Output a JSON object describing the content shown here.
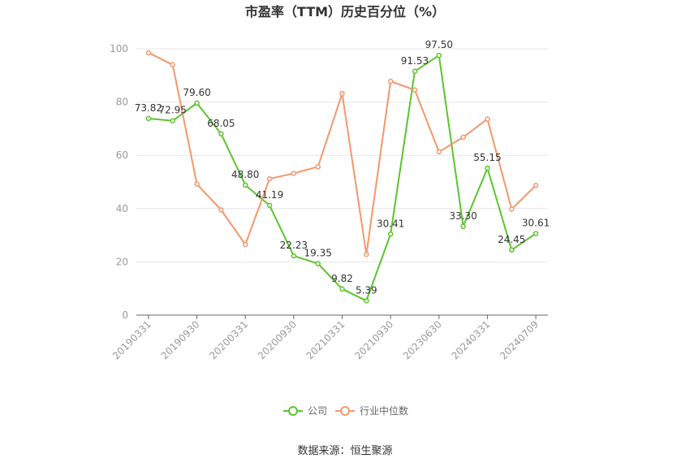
{
  "chart_data": {
    "type": "line",
    "title": "市盈率（TTM）历史百分位（%）",
    "xlabel": "",
    "ylabel": "",
    "ylim": [
      0,
      100
    ],
    "yticks": [
      0,
      20,
      40,
      60,
      80,
      100
    ],
    "x": [
      "20190331",
      "",
      "20190930",
      "",
      "20200331",
      "",
      "20200930",
      "",
      "20210331",
      "",
      "20210930",
      "",
      "20230630",
      "",
      "20240331",
      "",
      "20240709"
    ],
    "grid": true,
    "legend_position": "bottom",
    "series": [
      {
        "name": "公司",
        "color": "#5cc42d",
        "values": [
          73.82,
          72.95,
          79.6,
          68.05,
          48.8,
          41.19,
          22.23,
          19.35,
          9.82,
          5.39,
          30.41,
          91.53,
          97.5,
          33.3,
          55.15,
          24.45,
          30.61
        ],
        "labels": [
          "73.82",
          "72.95",
          "79.60",
          "68.05",
          "48.80",
          "41.19",
          "22.23",
          "19.35",
          "9.82",
          "5.39",
          "30.41",
          "91.53",
          "97.50",
          "33.30",
          "55.15",
          "24.45",
          "30.61"
        ]
      },
      {
        "name": "行业中位数",
        "color": "#f4976c",
        "values": [
          98.5,
          94.0,
          49.2,
          39.5,
          26.5,
          51.2,
          53.2,
          55.7,
          83.2,
          22.8,
          87.8,
          84.5,
          61.3,
          66.8,
          73.6,
          39.8,
          48.7
        ]
      }
    ],
    "source": "数据来源：恒生聚源"
  }
}
